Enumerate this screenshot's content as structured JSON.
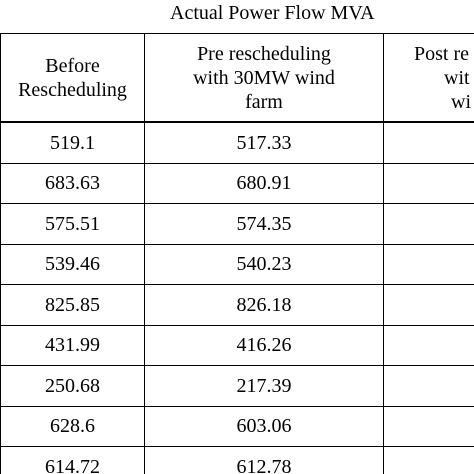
{
  "caption": "Actual Power Flow MVA",
  "columns": {
    "before": [
      "Before",
      "Rescheduling"
    ],
    "pre": [
      "Pre rescheduling",
      "with 30MW wind",
      "farm"
    ],
    "post": [
      "Post re",
      "wit",
      "wi"
    ]
  },
  "rows": [
    {
      "before": "519.1",
      "pre": "517.33"
    },
    {
      "before": "683.63",
      "pre": "680.91"
    },
    {
      "before": "575.51",
      "pre": "574.35"
    },
    {
      "before": "539.46",
      "pre": "540.23"
    },
    {
      "before": "825.85",
      "pre": "826.18"
    },
    {
      "before": "431.99",
      "pre": "416.26"
    },
    {
      "before": "250.68",
      "pre": "217.39"
    },
    {
      "before": "628.6",
      "pre": "603.06"
    },
    {
      "before": "614.72",
      "pre": "612.78"
    }
  ]
}
